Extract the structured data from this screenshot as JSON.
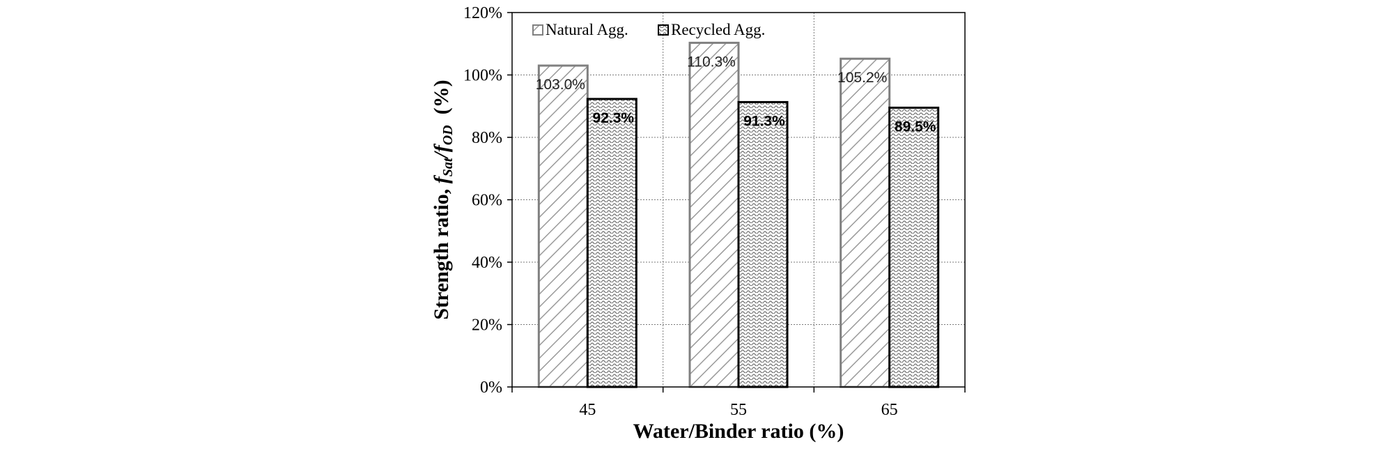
{
  "chart_data": {
    "type": "bar",
    "categories": [
      "45",
      "55",
      "65"
    ],
    "series": [
      {
        "name": "Natural Agg.",
        "values": [
          103.0,
          110.3,
          105.2
        ],
        "data_labels": [
          "103.0%",
          "110.3%",
          "105.2%"
        ],
        "fill_pattern": "diagonal-hatch",
        "stroke": "#808080"
      },
      {
        "name": "Recycled Agg.",
        "values": [
          92.3,
          91.3,
          89.5
        ],
        "data_labels": [
          "92.3%",
          "91.3%",
          "89.5%"
        ],
        "fill_pattern": "wavy-crosshatch",
        "stroke": "#000000"
      }
    ],
    "xlabel": "Water/Binder ratio  (%)",
    "ylabel_parts": {
      "prefix": "Strength ratio, ",
      "f1": "f",
      "sub1": "Sat",
      "slash": "/",
      "f2": "f",
      "sub2": "OD",
      "unit": "  (%)"
    },
    "ylim": [
      0,
      120
    ],
    "yticks": [
      0,
      20,
      40,
      60,
      80,
      100,
      120
    ],
    "ytick_labels": [
      "0%",
      "20%",
      "40%",
      "60%",
      "80%",
      "100%",
      "120%"
    ],
    "grid": "dotted",
    "legend_position": "top-left"
  }
}
